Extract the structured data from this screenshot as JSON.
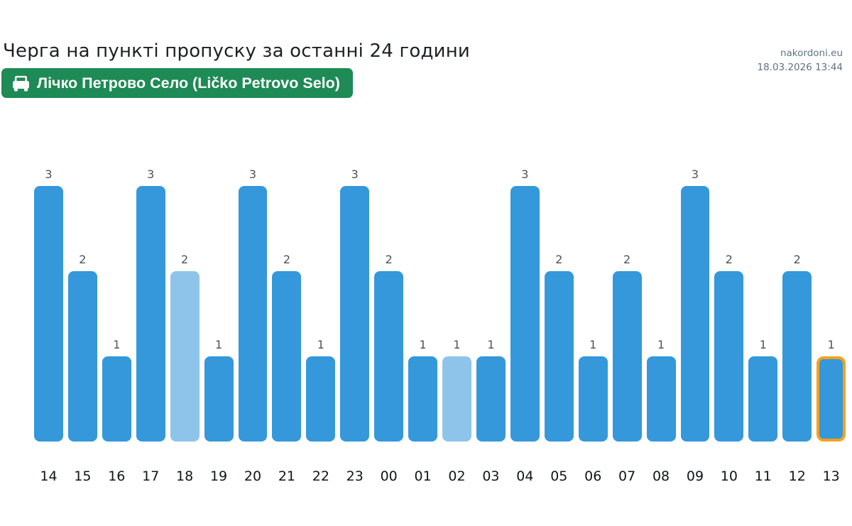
{
  "meta": {
    "site_name": "nakordoni.eu",
    "datetime": "18.03.2026 13:44"
  },
  "header": {
    "title": "Черга на пункті пропуску за останні 24 години",
    "checkpoint_label": "Лічко Петрово Село (Ličko Petrovo Selo)",
    "badge_color": "#1e8a55",
    "badge_icon": "car-icon"
  },
  "chart_data": {
    "type": "bar",
    "title": "Черга на пункті пропуску за останні 24 години",
    "xlabel": "",
    "ylabel": "",
    "ylim": [
      0,
      3
    ],
    "grid": false,
    "legend": null,
    "value_labels": true,
    "categories": [
      "14",
      "15",
      "16",
      "17",
      "18",
      "19",
      "20",
      "21",
      "22",
      "23",
      "00",
      "01",
      "02",
      "03",
      "04",
      "05",
      "06",
      "07",
      "08",
      "09",
      "10",
      "11",
      "12",
      "13"
    ],
    "values": [
      3,
      2,
      1,
      3,
      2,
      1,
      3,
      2,
      1,
      3,
      2,
      1,
      1,
      1,
      3,
      2,
      1,
      2,
      1,
      3,
      2,
      1,
      2,
      1
    ],
    "bar_color": "#3498db",
    "muted_bar_color": "#8fc4ea",
    "muted_indices": [
      4,
      12
    ],
    "current_index": 23,
    "current_outline_color": "#f9a11c"
  }
}
